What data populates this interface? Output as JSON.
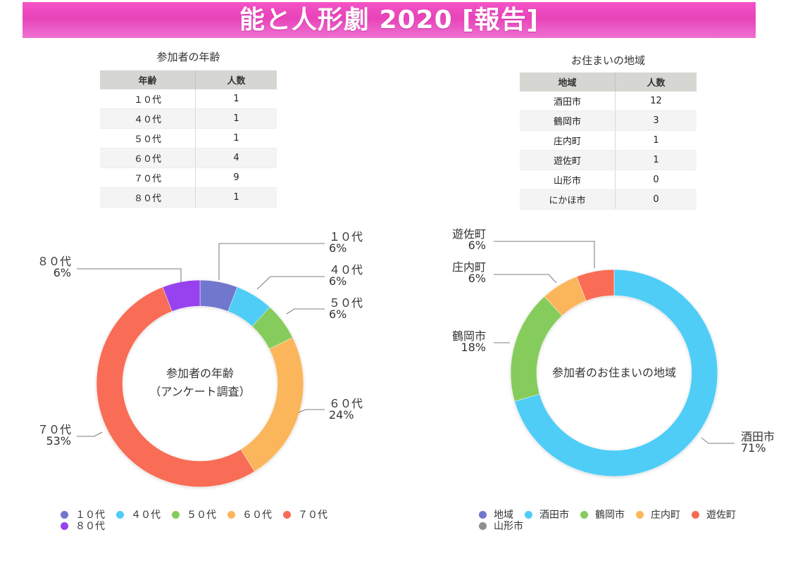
{
  "banner": {
    "title": "能と人形劇 2020 [報告]"
  },
  "age_table": {
    "title": "参加者の年齢",
    "headers": [
      "年齢",
      "人数"
    ],
    "rows": [
      [
        "１０代",
        "1"
      ],
      [
        "４０代",
        "1"
      ],
      [
        "５０代",
        "1"
      ],
      [
        "６０代",
        "4"
      ],
      [
        "７０代",
        "9"
      ],
      [
        "８０代",
        "1"
      ]
    ]
  },
  "region_table": {
    "title": "お住まいの地域",
    "headers": [
      "地域",
      "人数"
    ],
    "rows": [
      [
        "酒田市",
        "12"
      ],
      [
        "鶴岡市",
        "3"
      ],
      [
        "庄内町",
        "1"
      ],
      [
        "遊佐町",
        "1"
      ],
      [
        "山形市",
        "0"
      ],
      [
        "にかほ市",
        "0"
      ]
    ]
  },
  "chart_data": [
    {
      "type": "pie",
      "donut": true,
      "center_label": [
        "参加者の年齢",
        "（アンケート調査）"
      ],
      "categories": [
        "１０代",
        "４０代",
        "５０代",
        "６０代",
        "７０代",
        "８０代"
      ],
      "values": [
        1,
        1,
        1,
        4,
        9,
        1
      ],
      "percent_labels": [
        "6%",
        "6%",
        "6%",
        "24%",
        "53%",
        "6%"
      ],
      "colors": [
        "#7177cc",
        "#4fcdf7",
        "#86cc5c",
        "#fbb65b",
        "#f96c55",
        "#9742ee"
      ],
      "legend": {
        "placement": "bottom-left",
        "items": [
          "１０代",
          "４０代",
          "５０代",
          "６０代",
          "７０代",
          "８０代"
        ],
        "colors": [
          "#7177cc",
          "#4fcdf7",
          "#86cc5c",
          "#fbb65b",
          "#f96c55",
          "#9742ee"
        ]
      }
    },
    {
      "type": "pie",
      "donut": true,
      "center_label": [
        "参加者のお住まいの地域"
      ],
      "categories": [
        "酒田市",
        "鶴岡市",
        "庄内町",
        "遊佐町",
        "山形市",
        "にかほ市"
      ],
      "values": [
        12,
        3,
        1,
        1,
        0,
        0
      ],
      "percent_labels": [
        "71%",
        "18%",
        "6%",
        "6%",
        "",
        ""
      ],
      "colors": [
        "#4fcdf7",
        "#86cc5c",
        "#fbb65b",
        "#f96c55",
        "#8e8e8e",
        "#7177cc"
      ],
      "legend": {
        "placement": "bottom-right",
        "items": [
          "地域",
          "酒田市",
          "鶴岡市",
          "庄内町",
          "遊佐町",
          "山形市"
        ],
        "colors": [
          "#7177cc",
          "#4fcdf7",
          "#86cc5c",
          "#fbb65b",
          "#f96c55",
          "#8e8e8e"
        ]
      }
    }
  ]
}
